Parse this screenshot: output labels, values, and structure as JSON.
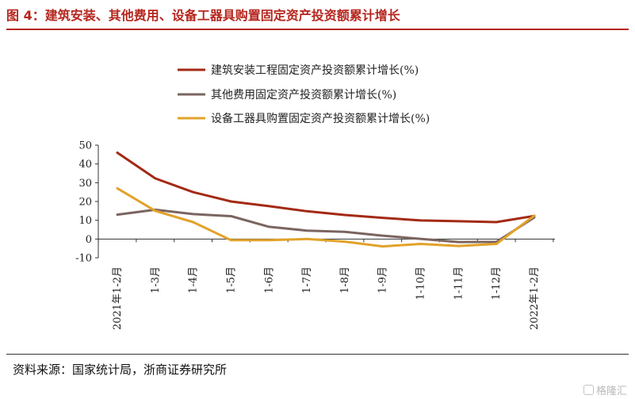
{
  "figure": {
    "title": "图 4：建筑安装、其他费用、设备工器具购置固定资产投资额累计增长",
    "source": "资料来源：国家统计局，浙商证券研究所",
    "watermark": "格隆汇"
  },
  "colors": {
    "title": "#b5261e",
    "series": [
      "#a32a14",
      "#7b6560",
      "#e2a22a"
    ],
    "axis": "#333333"
  },
  "chart_data": {
    "type": "line",
    "x": [
      "2021年1-2月",
      "1-3月",
      "1-4月",
      "1-5月",
      "1-6月",
      "1-7月",
      "1-8月",
      "1-9月",
      "1-10月",
      "1-11月",
      "1-12月",
      "2022年1-2月"
    ],
    "ylim": [
      -10,
      50
    ],
    "yticks": [
      -10,
      0,
      10,
      20,
      30,
      40,
      50
    ],
    "xlabel": "",
    "ylabel": "",
    "grid": false,
    "legend_position": "top-center",
    "series": [
      {
        "name": "建筑安装工程固定资产投资额累计增长(%)",
        "values": [
          46,
          32.3,
          25,
          20,
          17.5,
          14.8,
          12.8,
          11.3,
          9.9,
          9.5,
          9,
          12.3
        ]
      },
      {
        "name": "其他费用固定资产投资额累计增长(%)",
        "values": [
          13,
          15.6,
          13.3,
          12.2,
          6.5,
          4.5,
          3.8,
          1.8,
          0.1,
          -1.6,
          -1.5,
          11.5
        ]
      },
      {
        "name": "设备工器具购置固定资产投资额累计增长(%)",
        "values": [
          27,
          15,
          9,
          -0.6,
          -0.6,
          0,
          -1.4,
          -3.9,
          -2.6,
          -3.7,
          -2.6,
          12.5
        ]
      }
    ]
  }
}
